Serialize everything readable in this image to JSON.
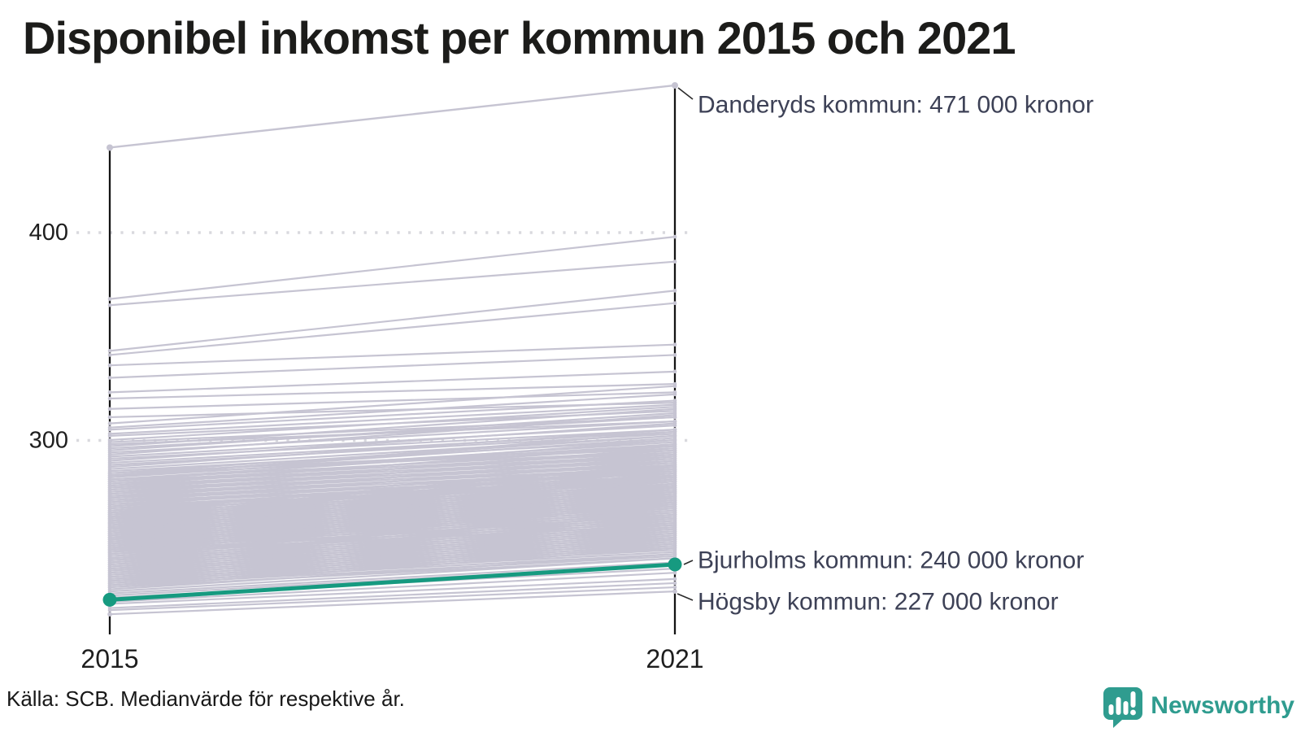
{
  "title": "Disponibel inkomst per kommun 2015 och 2021",
  "source_note": "Källa: SCB. Medianvärde för respektive år.",
  "branding": {
    "name": "Newsworthy"
  },
  "colors": {
    "background_line": "#c6c4d2",
    "highlight_line": "#169a80",
    "brand_teal": "#2f9c8f",
    "annotation_text": "#3d4156",
    "axis": "#141414",
    "grid": "#d9d9de",
    "tick_text": "#1e1e1e"
  },
  "chart_data": {
    "type": "line",
    "subtype": "slope-chart",
    "title": "Disponibel inkomst per kommun 2015 och 2021",
    "xlabel": "",
    "ylabel": "",
    "x_categories": [
      "2015",
      "2021"
    ],
    "y_tick_labels": [
      "400",
      "300"
    ],
    "y_ticks": [
      400,
      300
    ],
    "ylim": [
      212,
      478
    ],
    "grid": "dotted horizontal lines at y ticks",
    "legend_position": "none",
    "highlight": {
      "name": "Bjurholms kommun",
      "values": [
        223,
        240
      ],
      "label": "Bjurholms kommun: 240 000 kronor"
    },
    "labeled_lines": [
      {
        "name": "Danderyds kommun",
        "values": [
          441,
          471
        ],
        "label": "Danderyds kommun: 471 000 kronor"
      },
      {
        "name": "Högsby kommun",
        "values": [
          216,
          227
        ],
        "label": "Högsby kommun: 227 000 kronor"
      }
    ],
    "background_series": [
      [
        368,
        398
      ],
      [
        365,
        386
      ],
      [
        343,
        372
      ],
      [
        341,
        366
      ],
      [
        336,
        346
      ],
      [
        330,
        341
      ],
      [
        323,
        333
      ],
      [
        320,
        327
      ],
      [
        315,
        323
      ],
      [
        311,
        318
      ],
      [
        308,
        326
      ],
      [
        306,
        322
      ],
      [
        305,
        319
      ],
      [
        303,
        317
      ],
      [
        302,
        314
      ],
      [
        300,
        316
      ],
      [
        299,
        311
      ],
      [
        298,
        309
      ],
      [
        297,
        315
      ],
      [
        296,
        311
      ],
      [
        295,
        313
      ],
      [
        294,
        309
      ],
      [
        293,
        312
      ],
      [
        292,
        307
      ],
      [
        291,
        305
      ],
      [
        290,
        308
      ],
      [
        289,
        304
      ],
      [
        288,
        303
      ],
      [
        287,
        305
      ],
      [
        286,
        302
      ],
      [
        285,
        300
      ],
      [
        284,
        302
      ],
      [
        284,
        297
      ],
      [
        283,
        301
      ],
      [
        283,
        296
      ],
      [
        282,
        299
      ],
      [
        282,
        304
      ],
      [
        281,
        298
      ],
      [
        281,
        295
      ],
      [
        280,
        300
      ],
      [
        280,
        294
      ],
      [
        279,
        297
      ],
      [
        279,
        293
      ],
      [
        278,
        298
      ],
      [
        278,
        292
      ],
      [
        277,
        295
      ],
      [
        277,
        291
      ],
      [
        276,
        296
      ],
      [
        276,
        290
      ],
      [
        275,
        293
      ],
      [
        275,
        289
      ],
      [
        274,
        294
      ],
      [
        274,
        288
      ],
      [
        273,
        291
      ],
      [
        273,
        287
      ],
      [
        272,
        292
      ],
      [
        272,
        286
      ],
      [
        271,
        289
      ],
      [
        271,
        285
      ],
      [
        270,
        290
      ],
      [
        270,
        284
      ],
      [
        269,
        287
      ],
      [
        269,
        283
      ],
      [
        268,
        288
      ],
      [
        268,
        282
      ],
      [
        267,
        285
      ],
      [
        267,
        281
      ],
      [
        266,
        286
      ],
      [
        266,
        280
      ],
      [
        265,
        278
      ],
      [
        265,
        283
      ],
      [
        265,
        288
      ],
      [
        264,
        277
      ],
      [
        264,
        282
      ],
      [
        264,
        287
      ],
      [
        263,
        276
      ],
      [
        263,
        281
      ],
      [
        263,
        286
      ],
      [
        262,
        275
      ],
      [
        262,
        280
      ],
      [
        262,
        285
      ],
      [
        261,
        274
      ],
      [
        261,
        279
      ],
      [
        261,
        284
      ],
      [
        260,
        273
      ],
      [
        260,
        278
      ],
      [
        260,
        283
      ],
      [
        259,
        272
      ],
      [
        259,
        277
      ],
      [
        259,
        282
      ],
      [
        258,
        271
      ],
      [
        258,
        276
      ],
      [
        258,
        281
      ],
      [
        257,
        270
      ],
      [
        257,
        275
      ],
      [
        257,
        280
      ],
      [
        256,
        269
      ],
      [
        256,
        274
      ],
      [
        256,
        279
      ],
      [
        255,
        268
      ],
      [
        255,
        273
      ],
      [
        255,
        278
      ],
      [
        254,
        267
      ],
      [
        254,
        272
      ],
      [
        254,
        277
      ],
      [
        253,
        266
      ],
      [
        253,
        271
      ],
      [
        253,
        276
      ],
      [
        252,
        265
      ],
      [
        252,
        270
      ],
      [
        252,
        275
      ],
      [
        251,
        264
      ],
      [
        251,
        269
      ],
      [
        251,
        274
      ],
      [
        250,
        263
      ],
      [
        250,
        268
      ],
      [
        250,
        273
      ],
      [
        249,
        262
      ],
      [
        249,
        267
      ],
      [
        249,
        272
      ],
      [
        248,
        261
      ],
      [
        248,
        266
      ],
      [
        248,
        271
      ],
      [
        247,
        260
      ],
      [
        247,
        265
      ],
      [
        247,
        270
      ],
      [
        246,
        259
      ],
      [
        246,
        264
      ],
      [
        246,
        269
      ],
      [
        245,
        259
      ],
      [
        245,
        264
      ],
      [
        244,
        258
      ],
      [
        244,
        263
      ],
      [
        243,
        257
      ],
      [
        243,
        262
      ],
      [
        242,
        256
      ],
      [
        242,
        261
      ],
      [
        241,
        255
      ],
      [
        241,
        260
      ],
      [
        240,
        254
      ],
      [
        240,
        259
      ],
      [
        239,
        253
      ],
      [
        239,
        258
      ],
      [
        238,
        252
      ],
      [
        238,
        257
      ],
      [
        237,
        251
      ],
      [
        237,
        256
      ],
      [
        236,
        250
      ],
      [
        236,
        255
      ],
      [
        235,
        249
      ],
      [
        235,
        254
      ],
      [
        234,
        248
      ],
      [
        234,
        253
      ],
      [
        233,
        247
      ],
      [
        233,
        252
      ],
      [
        232,
        246
      ],
      [
        232,
        251
      ],
      [
        231,
        245
      ],
      [
        231,
        250
      ],
      [
        230,
        244
      ],
      [
        230,
        249
      ],
      [
        229,
        243
      ],
      [
        229,
        248
      ],
      [
        228,
        245
      ],
      [
        227,
        243
      ],
      [
        226,
        241
      ],
      [
        225,
        240
      ],
      [
        224,
        238
      ],
      [
        222,
        236
      ],
      [
        221,
        233
      ],
      [
        219,
        231
      ],
      [
        218,
        229
      ]
    ]
  }
}
